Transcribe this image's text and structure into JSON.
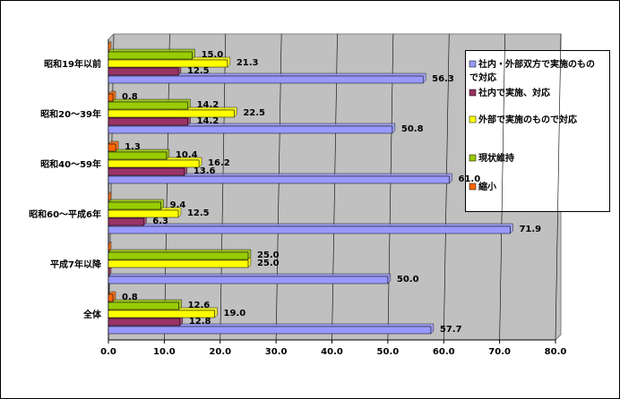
{
  "chart_data": {
    "type": "bar",
    "orientation": "horizontal",
    "categories": [
      "昭和19年以前",
      "昭和20～39年",
      "昭和40～59年",
      "昭和60～平成6年",
      "平成7年以降",
      "全体"
    ],
    "series": [
      {
        "name": "社内・外部双方で実施のもので対応",
        "color": "#9999ff",
        "values": [
          56.3,
          50.8,
          61.0,
          71.9,
          50.0,
          57.7
        ],
        "value_labels": [
          "56.3",
          "50.8",
          "61.0",
          "71.9",
          "50.0",
          "57.7"
        ]
      },
      {
        "name": "社内で実施、対応",
        "color": "#993366",
        "values": [
          12.5,
          14.2,
          13.6,
          6.3,
          0,
          12.8
        ],
        "value_labels": [
          "12.5",
          "14.2",
          "13.6",
          "6.3",
          null,
          "12.8"
        ]
      },
      {
        "name": "外部で実施のもので対応",
        "color": "#ffff00",
        "values": [
          21.3,
          22.5,
          16.2,
          12.5,
          25.0,
          19.0
        ],
        "value_labels": [
          "21.3",
          "22.5",
          "16.2",
          "12.5",
          "25.0",
          "19.0"
        ]
      },
      {
        "name": "現状維持",
        "color": "#99cc00",
        "values": [
          15.0,
          14.2,
          10.4,
          9.4,
          25.0,
          12.6
        ],
        "value_labels": [
          "15.0",
          "14.2",
          "10.4",
          "9.4",
          "25.0",
          "12.6"
        ]
      },
      {
        "name": "縮小",
        "color": "#ff6600",
        "values": [
          0,
          0.8,
          1.3,
          0,
          0,
          0.8
        ],
        "value_labels": [
          null,
          "0.8",
          "1.3",
          null,
          null,
          "0.8"
        ]
      }
    ],
    "xlim": [
      0,
      80
    ],
    "xticks": [
      {
        "value": 0,
        "label": "0.0"
      },
      {
        "value": 10,
        "label": "10.0"
      },
      {
        "value": 20,
        "label": "20.0"
      },
      {
        "value": 30,
        "label": "30.0"
      },
      {
        "value": 40,
        "label": "40.0"
      },
      {
        "value": 50,
        "label": "50.0"
      },
      {
        "value": 60,
        "label": "60.0"
      },
      {
        "value": 70,
        "label": "70.0"
      },
      {
        "value": 80,
        "label": "80.0"
      }
    ],
    "grid": true,
    "legend": "right"
  }
}
